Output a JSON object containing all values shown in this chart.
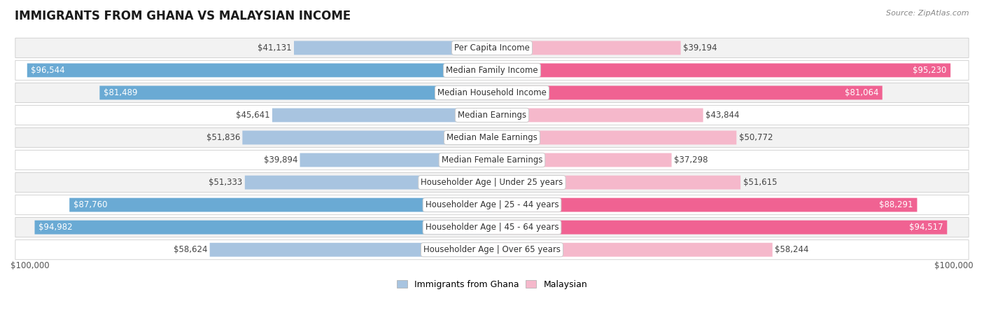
{
  "title": "IMMIGRANTS FROM GHANA VS MALAYSIAN INCOME",
  "source": "Source: ZipAtlas.com",
  "categories": [
    "Per Capita Income",
    "Median Family Income",
    "Median Household Income",
    "Median Earnings",
    "Median Male Earnings",
    "Median Female Earnings",
    "Householder Age | Under 25 years",
    "Householder Age | 25 - 44 years",
    "Householder Age | 45 - 64 years",
    "Householder Age | Over 65 years"
  ],
  "ghana_values": [
    41131,
    96544,
    81489,
    45641,
    51836,
    39894,
    51333,
    87760,
    94982,
    58624
  ],
  "malaysia_values": [
    39194,
    95230,
    81064,
    43844,
    50772,
    37298,
    51615,
    88291,
    94517,
    58244
  ],
  "ghana_labels": [
    "$41,131",
    "$96,544",
    "$81,489",
    "$45,641",
    "$51,836",
    "$39,894",
    "$51,333",
    "$87,760",
    "$94,982",
    "$58,624"
  ],
  "malaysia_labels": [
    "$39,194",
    "$95,230",
    "$81,064",
    "$43,844",
    "$50,772",
    "$37,298",
    "$51,615",
    "$88,291",
    "$94,517",
    "$58,244"
  ],
  "ghana_color_light": "#a8c4e0",
  "ghana_color_dark": "#6aaad4",
  "malaysia_color_light": "#f5b8cb",
  "malaysia_color_dark": "#f06292",
  "max_value": 100000,
  "bar_height": 0.62,
  "row_bg_even": "#f2f2f2",
  "row_bg_odd": "#ffffff",
  "label_fontsize": 8.5,
  "category_fontsize": 8.5,
  "title_fontsize": 12,
  "ghana_threshold": 60000,
  "malaysia_threshold": 60000
}
